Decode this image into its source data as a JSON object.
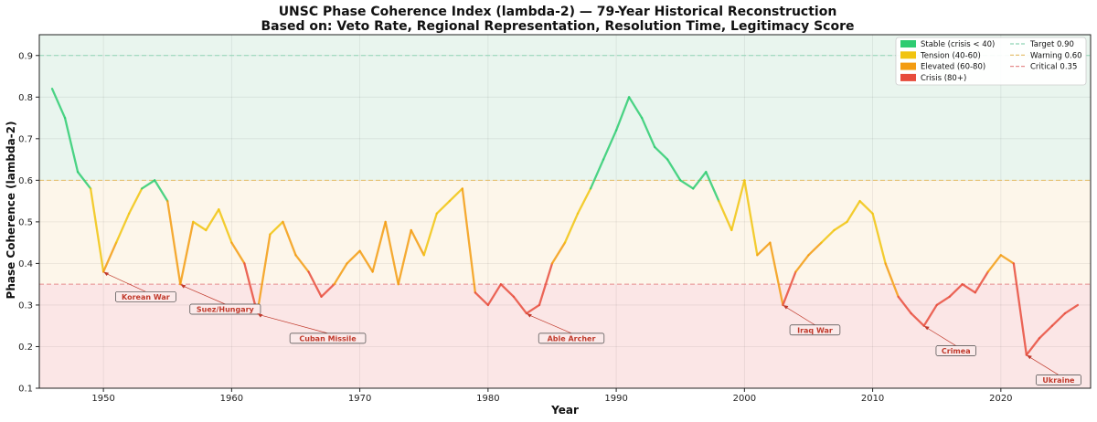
{
  "chart_data": {
    "type": "line",
    "title_line1": "UNSC Phase Coherence Index (lambda-2) — 79-Year Historical Reconstruction",
    "title_line2": "Based on: Veto Rate, Regional Representation, Resolution Time, Legitimacy Score",
    "xlabel": "Year",
    "ylabel": "Phase Coherence (lambda-2)",
    "xlim": [
      1945,
      2027
    ],
    "ylim": [
      0.1,
      0.95
    ],
    "xticks": [
      1950,
      1960,
      1970,
      1980,
      1990,
      2000,
      2010,
      2020
    ],
    "yticks": [
      0.1,
      0.2,
      0.3,
      0.4,
      0.5,
      0.6,
      0.7,
      0.8,
      0.9
    ],
    "x": [
      1946,
      1947,
      1948,
      1949,
      1950,
      1951,
      1952,
      1953,
      1954,
      1955,
      1956,
      1957,
      1958,
      1959,
      1960,
      1961,
      1962,
      1963,
      1964,
      1965,
      1966,
      1967,
      1968,
      1969,
      1970,
      1971,
      1972,
      1973,
      1974,
      1975,
      1976,
      1977,
      1978,
      1979,
      1980,
      1981,
      1982,
      1983,
      1984,
      1985,
      1986,
      1987,
      1988,
      1989,
      1990,
      1991,
      1992,
      1993,
      1994,
      1995,
      1996,
      1997,
      1998,
      1999,
      2000,
      2001,
      2002,
      2003,
      2004,
      2005,
      2006,
      2007,
      2008,
      2009,
      2010,
      2011,
      2012,
      2013,
      2014,
      2015,
      2016,
      2017,
      2018,
      2019,
      2020,
      2021,
      2022,
      2023,
      2024,
      2025,
      2026
    ],
    "values": [
      0.82,
      0.75,
      0.62,
      0.58,
      0.38,
      0.45,
      0.52,
      0.58,
      0.6,
      0.55,
      0.35,
      0.5,
      0.48,
      0.53,
      0.45,
      0.4,
      0.28,
      0.47,
      0.5,
      0.42,
      0.38,
      0.32,
      0.35,
      0.4,
      0.43,
      0.38,
      0.5,
      0.35,
      0.48,
      0.42,
      0.52,
      0.55,
      0.58,
      0.33,
      0.3,
      0.35,
      0.32,
      0.28,
      0.3,
      0.4,
      0.45,
      0.52,
      0.58,
      0.65,
      0.72,
      0.8,
      0.75,
      0.68,
      0.65,
      0.6,
      0.58,
      0.62,
      0.55,
      0.48,
      0.6,
      0.42,
      0.45,
      0.3,
      0.38,
      0.42,
      0.45,
      0.48,
      0.5,
      0.55,
      0.52,
      0.4,
      0.32,
      0.28,
      0.25,
      0.3,
      0.32,
      0.35,
      0.33,
      0.38,
      0.42,
      0.4,
      0.18,
      0.22,
      0.25,
      0.28,
      0.3
    ],
    "bands": [
      {
        "from": 0.6,
        "to": 0.95,
        "color": "#e9f5ee"
      },
      {
        "from": 0.35,
        "to": 0.6,
        "color": "#fdf6ea"
      },
      {
        "from": 0.1,
        "to": 0.35,
        "color": "#fbe6e6"
      }
    ],
    "threshold_lines": [
      {
        "label": "Target 0.90",
        "value": 0.9,
        "color": "#8fd4b5"
      },
      {
        "label": "Warning 0.60",
        "value": 0.6,
        "color": "#e3bb63"
      },
      {
        "label": "Critical 0.35",
        "value": 0.35,
        "color": "#e58c8c"
      }
    ],
    "legend_categories": [
      {
        "label": "Stable (crisis < 40)",
        "color": "#2ecc71"
      },
      {
        "label": "Tension (40-60)",
        "color": "#f1c40f"
      },
      {
        "label": "Elevated (60-80)",
        "color": "#f39c12"
      },
      {
        "label": "Crisis (80+)",
        "color": "#e74c3c"
      }
    ],
    "legend_position": "top-right",
    "grid": true,
    "annotations": [
      {
        "label": "Korean War",
        "x": 1950,
        "y": 0.38,
        "text_x": 1953.3,
        "text_y": 0.32
      },
      {
        "label": "Suez/Hungary",
        "x": 1956,
        "y": 0.35,
        "text_x": 1959.5,
        "text_y": 0.29
      },
      {
        "label": "Cuban Missile",
        "x": 1962,
        "y": 0.28,
        "text_x": 1967.5,
        "text_y": 0.22
      },
      {
        "label": "Able Archer",
        "x": 1983,
        "y": 0.28,
        "text_x": 1986.5,
        "text_y": 0.22
      },
      {
        "label": "Iraq War",
        "x": 2003,
        "y": 0.3,
        "text_x": 2005.5,
        "text_y": 0.24
      },
      {
        "label": "Crimea",
        "x": 2014,
        "y": 0.25,
        "text_x": 2016.5,
        "text_y": 0.19
      },
      {
        "label": "Ukraine",
        "x": 2022,
        "y": 0.18,
        "text_x": 2024.5,
        "text_y": 0.12
      }
    ]
  }
}
